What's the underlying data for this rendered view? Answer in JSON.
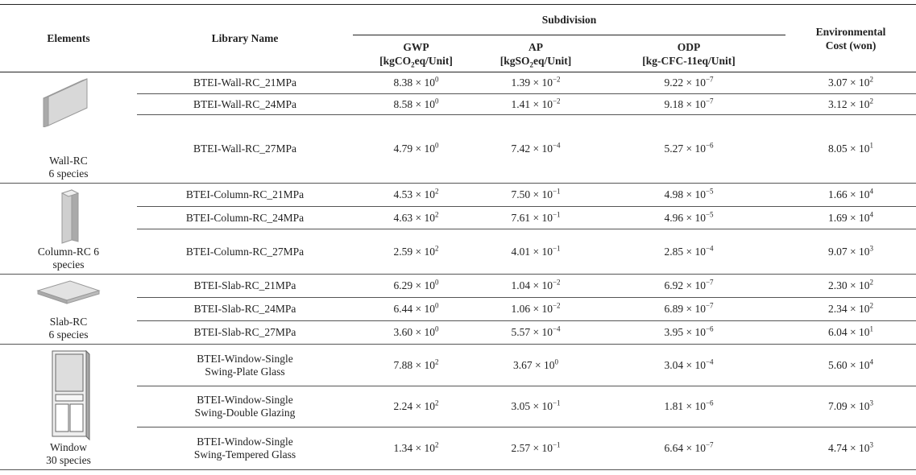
{
  "header": {
    "elements": "Elements",
    "library_name": "Library Name",
    "subdivision": "Subdivision",
    "columns": [
      {
        "name": "GWP",
        "unit": {
          "pre": "[kgCO",
          "sub": "2",
          "post": "eq/Unit]"
        }
      },
      {
        "name": "AP",
        "unit": {
          "pre": "[kgSO",
          "sub": "2",
          "post": "eq/Unit]"
        }
      },
      {
        "name": "ODP",
        "unit": {
          "pre": "[kg-CFC-11eq/Unit]"
        }
      }
    ],
    "cost": [
      "Environmental",
      "Cost (won)"
    ]
  },
  "groups": [
    {
      "element": [
        "Wall-RC",
        "6 species"
      ],
      "rows": [
        {
          "library": [
            "BTEI-Wall-RC_21MPa"
          ],
          "values": [
            {
              "base": "8.38 × 10",
              "exp": "0"
            },
            {
              "base": "1.39 × 10",
              "exp": "−2"
            },
            {
              "base": "9.22 × 10",
              "exp": "−7"
            },
            {
              "base": "3.07 × 10",
              "exp": "2"
            }
          ]
        },
        {
          "library": [
            "BTEI-Wall-RC_24MPa"
          ],
          "values": [
            {
              "base": "8.58 × 10",
              "exp": "0"
            },
            {
              "base": "1.41 × 10",
              "exp": "−2"
            },
            {
              "base": "9.18 × 10",
              "exp": "−7"
            },
            {
              "base": "3.12 × 10",
              "exp": "2"
            }
          ]
        },
        {
          "library": [
            "BTEI-Wall-RC_27MPa"
          ],
          "values": [
            {
              "base": "4.79 × 10",
              "exp": "0"
            },
            {
              "base": "7.42 × 10",
              "exp": "−4"
            },
            {
              "base": "5.27 × 10",
              "exp": "−6"
            },
            {
              "base": "8.05 × 10",
              "exp": "1"
            }
          ]
        }
      ]
    },
    {
      "element": [
        "Column-RC 6",
        "species"
      ],
      "rows": [
        {
          "library": [
            "BTEI-Column-RC_21MPa"
          ],
          "values": [
            {
              "base": "4.53 × 10",
              "exp": "2"
            },
            {
              "base": "7.50 × 10",
              "exp": "−1"
            },
            {
              "base": "4.98 × 10",
              "exp": "−5"
            },
            {
              "base": "1.66 × 10",
              "exp": "4"
            }
          ]
        },
        {
          "library": [
            "BTEI-Column-RC_24MPa"
          ],
          "values": [
            {
              "base": "4.63 × 10",
              "exp": "2"
            },
            {
              "base": "7.61 × 10",
              "exp": "−1"
            },
            {
              "base": "4.96 × 10",
              "exp": "−5"
            },
            {
              "base": "1.69 × 10",
              "exp": "4"
            }
          ]
        },
        {
          "library": [
            "BTEI-Column-RC_27MPa"
          ],
          "values": [
            {
              "base": "2.59 × 10",
              "exp": "2"
            },
            {
              "base": "4.01 × 10",
              "exp": "−1"
            },
            {
              "base": "2.85 × 10",
              "exp": "−4"
            },
            {
              "base": "9.07 × 10",
              "exp": "3"
            }
          ]
        }
      ]
    },
    {
      "element": [
        "Slab-RC",
        "6 species"
      ],
      "rows": [
        {
          "library": [
            "BTEI-Slab-RC_21MPa"
          ],
          "values": [
            {
              "base": "6.29 × 10",
              "exp": "0"
            },
            {
              "base": "1.04 × 10",
              "exp": "−2"
            },
            {
              "base": "6.92 × 10",
              "exp": "−7"
            },
            {
              "base": "2.30 × 10",
              "exp": "2"
            }
          ]
        },
        {
          "library": [
            "BTEI-Slab-RC_24MPa"
          ],
          "values": [
            {
              "base": "6.44 × 10",
              "exp": "0"
            },
            {
              "base": "1.06 × 10",
              "exp": "−2"
            },
            {
              "base": "6.89 × 10",
              "exp": "−7"
            },
            {
              "base": "2.34 × 10",
              "exp": "2"
            }
          ]
        },
        {
          "library": [
            "BTEI-Slab-RC_27MPa"
          ],
          "values": [
            {
              "base": "3.60 × 10",
              "exp": "0"
            },
            {
              "base": "5.57 × 10",
              "exp": "−4"
            },
            {
              "base": "3.95 × 10",
              "exp": "−6"
            },
            {
              "base": "6.04 × 10",
              "exp": "1"
            }
          ]
        }
      ]
    },
    {
      "element": [
        "Window",
        "30 species"
      ],
      "rows": [
        {
          "library": [
            "BTEI-Window-Single",
            "Swing-Plate Glass"
          ],
          "values": [
            {
              "base": "7.88 × 10",
              "exp": "2"
            },
            {
              "base": "3.67 × 10",
              "exp": "0"
            },
            {
              "base": "3.04 × 10",
              "exp": "−4"
            },
            {
              "base": "5.60 × 10",
              "exp": "4"
            }
          ]
        },
        {
          "library": [
            "BTEI-Window-Single",
            "Swing-Double Glazing"
          ],
          "values": [
            {
              "base": "2.24 × 10",
              "exp": "2"
            },
            {
              "base": "3.05 × 10",
              "exp": "−1"
            },
            {
              "base": "1.81 × 10",
              "exp": "−6"
            },
            {
              "base": "7.09 × 10",
              "exp": "3"
            }
          ]
        },
        {
          "library": [
            "BTEI-Window-Single",
            "Swing-Tempered Glass"
          ],
          "values": [
            {
              "base": "1.34 × 10",
              "exp": "2"
            },
            {
              "base": "2.57 × 10",
              "exp": "−1"
            },
            {
              "base": "6.64 × 10",
              "exp": "−7"
            },
            {
              "base": "4.74 × 10",
              "exp": "3"
            }
          ]
        }
      ]
    }
  ]
}
